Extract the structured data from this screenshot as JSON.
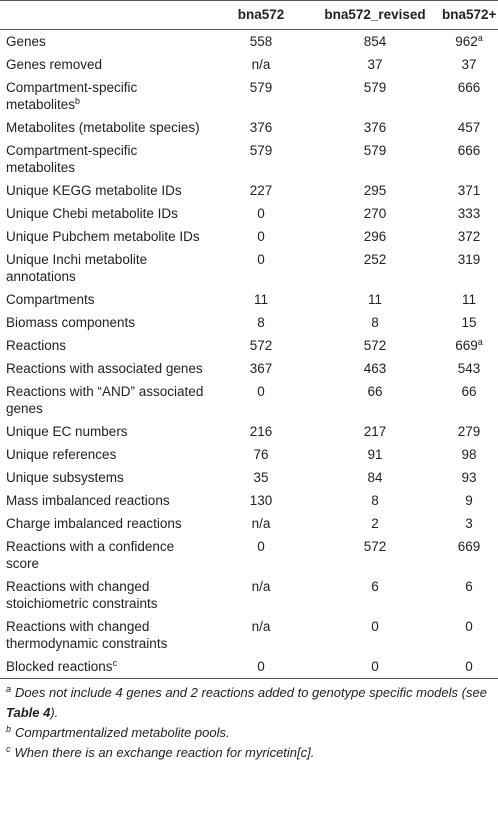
{
  "table": {
    "header": [
      "",
      "bna572",
      "bna572_revised",
      "bna572+"
    ],
    "rows": [
      [
        {
          "text": "Genes"
        },
        {
          "text": 558
        },
        {
          "text": 854
        },
        {
          "text": 962,
          "note": "a"
        }
      ],
      [
        {
          "text": "Genes removed"
        },
        {
          "text": "n/a"
        },
        {
          "text": 37
        },
        {
          "text": 37
        }
      ],
      [
        {
          "text": "Compartment-specific metabolites",
          "note": "b"
        },
        {
          "text": 579
        },
        {
          "text": 579
        },
        {
          "text": 666
        }
      ],
      [
        {
          "text": "Metabolites (metabolite species)"
        },
        {
          "text": 376
        },
        {
          "text": 376
        },
        {
          "text": 457
        }
      ],
      [
        {
          "text": "Compartment-specific metabolites"
        },
        {
          "text": 579
        },
        {
          "text": 579
        },
        {
          "text": 666
        }
      ],
      [
        {
          "text": "Unique KEGG metabolite IDs"
        },
        {
          "text": 227
        },
        {
          "text": 295
        },
        {
          "text": 371
        }
      ],
      [
        {
          "text": "Unique Chebi metabolite IDs"
        },
        {
          "text": 0
        },
        {
          "text": 270
        },
        {
          "text": 333
        }
      ],
      [
        {
          "text": "Unique Pubchem metabolite IDs"
        },
        {
          "text": 0
        },
        {
          "text": 296
        },
        {
          "text": 372
        }
      ],
      [
        {
          "text": "Unique Inchi metabolite annotations"
        },
        {
          "text": 0
        },
        {
          "text": 252
        },
        {
          "text": 319
        }
      ],
      [
        {
          "text": "Compartments"
        },
        {
          "text": 11
        },
        {
          "text": 11
        },
        {
          "text": 11
        }
      ],
      [
        {
          "text": "Biomass components"
        },
        {
          "text": 8
        },
        {
          "text": 8
        },
        {
          "text": 15
        }
      ],
      [
        {
          "text": "Reactions"
        },
        {
          "text": 572
        },
        {
          "text": 572
        },
        {
          "text": 669,
          "note": "a"
        }
      ],
      [
        {
          "text": "Reactions with associated genes"
        },
        {
          "text": 367
        },
        {
          "text": 463
        },
        {
          "text": 543
        }
      ],
      [
        {
          "text": "Reactions with “AND” associated genes"
        },
        {
          "text": 0
        },
        {
          "text": 66
        },
        {
          "text": 66
        }
      ],
      [
        {
          "text": "Unique EC numbers"
        },
        {
          "text": 216
        },
        {
          "text": 217
        },
        {
          "text": 279
        }
      ],
      [
        {
          "text": "Unique references"
        },
        {
          "text": 76
        },
        {
          "text": 91
        },
        {
          "text": 98
        }
      ],
      [
        {
          "text": "Unique subsystems"
        },
        {
          "text": 35
        },
        {
          "text": 84
        },
        {
          "text": 93
        }
      ],
      [
        {
          "text": "Mass imbalanced reactions"
        },
        {
          "text": 130
        },
        {
          "text": 8
        },
        {
          "text": 9
        }
      ],
      [
        {
          "text": "Charge imbalanced reactions"
        },
        {
          "text": "n/a"
        },
        {
          "text": 2
        },
        {
          "text": 3
        }
      ],
      [
        {
          "text": "Reactions with a confidence score"
        },
        {
          "text": 0
        },
        {
          "text": 572
        },
        {
          "text": 669
        }
      ],
      [
        {
          "text": "Reactions with changed stoichiometric constraints"
        },
        {
          "text": "n/a"
        },
        {
          "text": 6
        },
        {
          "text": 6
        }
      ],
      [
        {
          "text": "Reactions with changed thermodynamic constraints"
        },
        {
          "text": "n/a"
        },
        {
          "text": 0
        },
        {
          "text": 0
        }
      ],
      [
        {
          "text": "Blocked reactions",
          "note": "c"
        },
        {
          "text": 0
        },
        {
          "text": 0
        },
        {
          "text": 0
        }
      ]
    ],
    "footnotes": [
      {
        "mark": "a",
        "parts": [
          "Does not include 4 genes and 2 reactions added to genotype specific models (see ",
          {
            "text": "Table 4",
            "bold": true
          },
          ")."
        ]
      },
      {
        "mark": "b",
        "parts": [
          "Compartmentalized metabolite pools."
        ]
      },
      {
        "mark": "c",
        "parts": [
          "When there is an exchange reaction for myricetin[c]."
        ]
      }
    ]
  }
}
